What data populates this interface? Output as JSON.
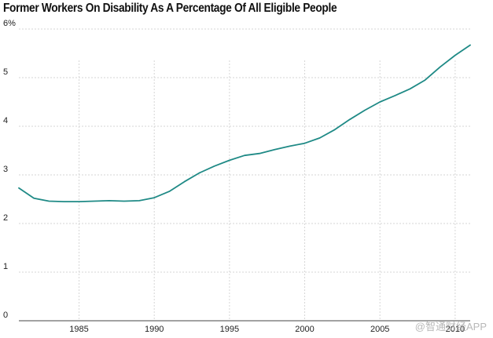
{
  "chart_data": {
    "type": "line",
    "title": "Former Workers On Disability As A Percentage Of All Eligible People",
    "xlabel": "",
    "ylabel": "",
    "xlim": [
      1981,
      2011
    ],
    "ylim": [
      0,
      6
    ],
    "x_ticks": [
      1985,
      1990,
      1995,
      2000,
      2005,
      2010
    ],
    "y_ticks": [
      0,
      1,
      2,
      3,
      4,
      5,
      6
    ],
    "y_tick_labels": [
      "0",
      "1",
      "2",
      "3",
      "4",
      "5",
      "6%"
    ],
    "grid": true,
    "series": [
      {
        "name": "Former workers on disability",
        "color": "#1f8a86",
        "x": [
          1981,
          1982,
          1983,
          1984,
          1985,
          1986,
          1987,
          1988,
          1989,
          1990,
          1991,
          1992,
          1993,
          1994,
          1995,
          1996,
          1997,
          1998,
          1999,
          2000,
          2001,
          2002,
          2003,
          2004,
          2005,
          2006,
          2007,
          2008,
          2009,
          2010,
          2011
        ],
        "y": [
          2.73,
          2.52,
          2.46,
          2.45,
          2.45,
          2.46,
          2.47,
          2.46,
          2.47,
          2.53,
          2.66,
          2.86,
          3.04,
          3.18,
          3.3,
          3.4,
          3.44,
          3.52,
          3.59,
          3.65,
          3.76,
          3.93,
          4.14,
          4.33,
          4.5,
          4.63,
          4.77,
          4.95,
          5.22,
          5.46,
          5.67
        ]
      }
    ]
  },
  "watermark": "@智通财经APP"
}
